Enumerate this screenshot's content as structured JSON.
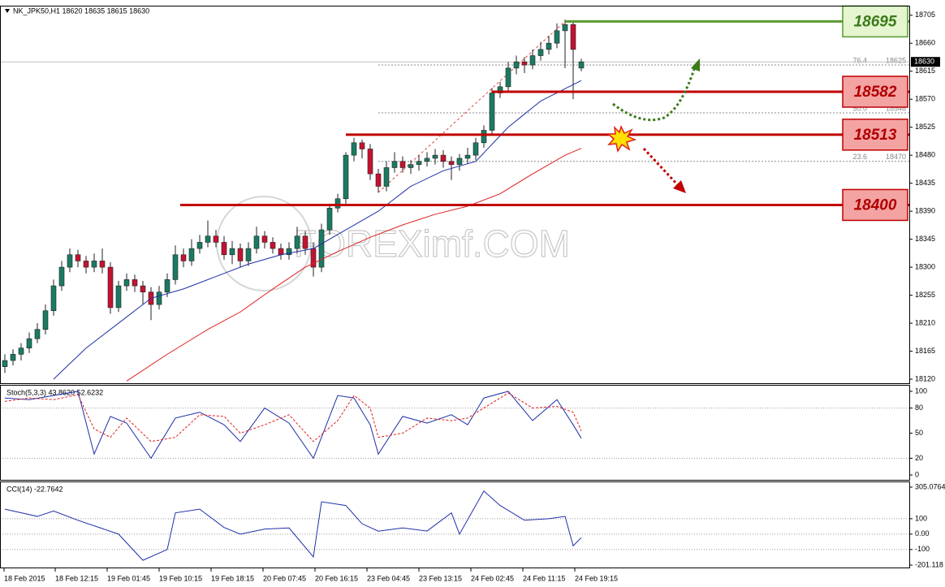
{
  "chart_data": [
    {
      "type": "candlestick",
      "title": "NK_JPK50,H1  18620 18635 18615 18630",
      "watermark": "FOREXimf.COM",
      "up_color": "#1b7a63",
      "down_color": "#c41230",
      "values": [
        [
          18140,
          18160,
          18130,
          18150
        ],
        [
          18150,
          18168,
          18142,
          18160
        ],
        [
          18160,
          18178,
          18150,
          18170
        ],
        [
          18170,
          18195,
          18162,
          18185
        ],
        [
          18185,
          18210,
          18178,
          18200
        ],
        [
          18200,
          18240,
          18192,
          18230
        ],
        [
          18230,
          18280,
          18222,
          18270
        ],
        [
          18270,
          18310,
          18262,
          18300
        ],
        [
          18300,
          18330,
          18292,
          18320
        ],
        [
          18320,
          18328,
          18300,
          18310
        ],
        [
          18310,
          18318,
          18290,
          18300
        ],
        [
          18300,
          18322,
          18292,
          18310
        ],
        [
          18310,
          18330,
          18290,
          18300
        ],
        [
          18300,
          18308,
          18225,
          18235
        ],
        [
          18235,
          18278,
          18228,
          18270
        ],
        [
          18270,
          18290,
          18262,
          18280
        ],
        [
          18280,
          18288,
          18260,
          18270
        ],
        [
          18270,
          18278,
          18240,
          18260
        ],
        [
          18260,
          18268,
          18215,
          18240
        ],
        [
          18240,
          18270,
          18232,
          18260
        ],
        [
          18260,
          18290,
          18252,
          18280
        ],
        [
          18280,
          18335,
          18272,
          18320
        ],
        [
          18320,
          18330,
          18300,
          18310
        ],
        [
          18310,
          18345,
          18302,
          18330
        ],
        [
          18330,
          18352,
          18322,
          18340
        ],
        [
          18340,
          18375,
          18332,
          18350
        ],
        [
          18350,
          18360,
          18332,
          18340
        ],
        [
          18340,
          18350,
          18312,
          18320
        ],
        [
          18320,
          18342,
          18305,
          18330
        ],
        [
          18330,
          18338,
          18300,
          18310
        ],
        [
          18310,
          18340,
          18302,
          18330
        ],
        [
          18330,
          18365,
          18322,
          18350
        ],
        [
          18350,
          18358,
          18330,
          18340
        ],
        [
          18340,
          18348,
          18322,
          18330
        ],
        [
          18330,
          18338,
          18312,
          18320
        ],
        [
          18320,
          18340,
          18312,
          18330
        ],
        [
          18330,
          18365,
          18322,
          18350
        ],
        [
          18350,
          18358,
          18320,
          18330
        ],
        [
          18330,
          18340,
          18285,
          18300
        ],
        [
          18300,
          18370,
          18292,
          18360
        ],
        [
          18360,
          18402,
          18352,
          18395
        ],
        [
          18395,
          18418,
          18388,
          18410
        ],
        [
          18410,
          18485,
          18402,
          18480
        ],
        [
          18480,
          18508,
          18470,
          18500
        ],
        [
          18500,
          18505,
          18475,
          18490
        ],
        [
          18490,
          18498,
          18440,
          18450
        ],
        [
          18450,
          18458,
          18420,
          18430
        ],
        [
          18430,
          18470,
          18422,
          18460
        ],
        [
          18460,
          18485,
          18452,
          18470
        ],
        [
          18470,
          18478,
          18452,
          18460
        ],
        [
          18460,
          18472,
          18450,
          18465
        ],
        [
          18465,
          18480,
          18455,
          18470
        ],
        [
          18470,
          18485,
          18462,
          18475
        ],
        [
          18475,
          18490,
          18465,
          18480
        ],
        [
          18480,
          18488,
          18460,
          18470
        ],
        [
          18470,
          18478,
          18440,
          18465
        ],
        [
          18465,
          18482,
          18455,
          18475
        ],
        [
          18475,
          18492,
          18466,
          18480
        ],
        [
          18480,
          18508,
          18472,
          18500
        ],
        [
          18500,
          18528,
          18492,
          18520
        ],
        [
          18520,
          18588,
          18512,
          18580
        ],
        [
          18580,
          18598,
          18572,
          18590
        ],
        [
          18590,
          18630,
          18582,
          18620
        ],
        [
          18620,
          18640,
          18610,
          18630
        ],
        [
          18630,
          18638,
          18612,
          18625
        ],
        [
          18625,
          18650,
          18618,
          18640
        ],
        [
          18640,
          18662,
          18632,
          18650
        ],
        [
          18650,
          18672,
          18642,
          18660
        ],
        [
          18660,
          18692,
          18652,
          18680
        ],
        [
          18680,
          18698,
          18620,
          18690
        ],
        [
          18690,
          18694,
          18570,
          18650
        ],
        [
          18620,
          18635,
          18615,
          18630
        ]
      ],
      "series": [
        {
          "color": "#1e2fa8",
          "x": [
            6,
            10,
            14,
            18,
            22,
            26,
            30,
            34,
            38,
            42,
            46,
            50,
            54,
            58,
            62,
            66,
            71
          ],
          "values": [
            18120,
            18170,
            18210,
            18250,
            18265,
            18285,
            18305,
            18320,
            18330,
            18360,
            18390,
            18430,
            18455,
            18470,
            18525,
            18567,
            18600
          ]
        },
        {
          "color": "#e02020",
          "x": [
            15,
            20,
            25,
            29,
            33,
            37,
            41,
            45,
            49,
            53,
            57,
            61,
            65,
            69,
            71
          ],
          "values": [
            18117,
            18160,
            18200,
            18228,
            18265,
            18300,
            18325,
            18348,
            18368,
            18385,
            18398,
            18418,
            18450,
            18480,
            18491
          ]
        }
      ],
      "xlim": [
        -0.6,
        111.4
      ],
      "xticks": [
        {
          "value": -0.1,
          "label": "18 Feb 2015"
        },
        {
          "value": 6.2,
          "label": "18 Feb 12:15"
        },
        {
          "value": 12.6,
          "label": "19 Feb 01:45"
        },
        {
          "value": 19,
          "label": "19 Feb 10:15"
        },
        {
          "value": 25.4,
          "label": "19 Feb 18:15"
        },
        {
          "value": 31.8,
          "label": "20 Feb 07:45"
        },
        {
          "value": 38.2,
          "label": "20 Feb 16:15"
        },
        {
          "value": 44.6,
          "label": "23 Feb 04:45"
        },
        {
          "value": 51,
          "label": "23 Feb 13:15"
        },
        {
          "value": 57.4,
          "label": "24 Feb 02:45"
        },
        {
          "value": 63.8,
          "label": "24 Feb 11:15"
        },
        {
          "value": 70.2,
          "label": "24 Feb 19:15"
        }
      ],
      "ylim": [
        18113.5,
        18719
      ],
      "yticks": [
        18705,
        18660,
        18615,
        18570,
        18525,
        18480,
        18435,
        18390,
        18345,
        18300,
        18255,
        18210,
        18165,
        18120
      ],
      "current": 18630,
      "levels": [
        {
          "value": 18695,
          "from_x": 69,
          "color": "#5a9a2e",
          "fill": "#e4f5cf",
          "text_color": "#3d7a1a"
        },
        {
          "value": 18582,
          "from_x": 60,
          "color": "#c00000",
          "fill": "#f4a3a3",
          "text_color": "#b00000"
        },
        {
          "value": 18513,
          "from_x": 42,
          "color": "#c00000",
          "fill": "#f4a3a3",
          "text_color": "#b00000"
        },
        {
          "value": 18400,
          "from_x": 21.6,
          "color": "#c00000",
          "fill": "#f4a3a3",
          "text_color": "#b00000"
        }
      ],
      "fib": {
        "x": [
          46,
          69
        ],
        "values": [
          18420,
          18695
        ],
        "color": "#e0443a",
        "levels": [
          {
            "label": "76.4",
            "value": 18625
          },
          {
            "label": "50.0",
            "value": 18548
          },
          {
            "label": "23.6",
            "value": 18470
          }
        ]
      }
    },
    {
      "type": "line",
      "title": "Stoch(5,3,3) 43.8620 52.6232",
      "series": [
        {
          "color": "#1e2fa8",
          "style": "solid",
          "x": [
            0,
            3,
            6,
            9,
            11,
            13,
            15,
            18,
            21,
            24,
            27,
            29,
            32,
            35,
            38,
            41,
            43,
            45,
            46,
            49,
            52,
            55,
            57,
            59,
            62,
            65,
            68,
            70,
            71
          ],
          "values": [
            92,
            90,
            95,
            100,
            25,
            70,
            62,
            20,
            68,
            75,
            60,
            40,
            80,
            62,
            20,
            95,
            92,
            60,
            25,
            70,
            62,
            72,
            60,
            92,
            100,
            65,
            90,
            60,
            43.862
          ]
        },
        {
          "color": "#e02020",
          "style": "dashed",
          "x": [
            0,
            3,
            6,
            9,
            11,
            13,
            15,
            18,
            21,
            24,
            27,
            29,
            32,
            35,
            38,
            41,
            43,
            45,
            46,
            49,
            52,
            55,
            57,
            59,
            62,
            65,
            68,
            70,
            71
          ],
          "values": [
            88,
            92,
            90,
            96,
            55,
            45,
            68,
            40,
            45,
            72,
            70,
            50,
            60,
            72,
            40,
            65,
            95,
            80,
            45,
            50,
            68,
            65,
            68,
            80,
            98,
            80,
            82,
            75,
            52.6232
          ]
        }
      ],
      "ylim": [
        -4.85,
        105.8
      ],
      "yticks": [
        100,
        80,
        50,
        20,
        0
      ],
      "levels": [
        80,
        20
      ]
    },
    {
      "type": "line",
      "title": "CCI(14) -22.7642",
      "series": [
        {
          "color": "#1e2fa8",
          "style": "solid",
          "x": [
            0,
            4,
            6,
            9,
            14,
            17,
            20,
            21,
            24,
            27,
            29,
            32,
            35,
            38,
            39,
            42,
            44,
            46,
            49,
            52,
            55,
            56,
            59,
            61,
            64,
            67,
            69,
            70,
            71
          ],
          "values": [
            162,
            115,
            150,
            90,
            0,
            -170,
            -100,
            138,
            162,
            43,
            0,
            33,
            40,
            -148,
            210,
            186,
            67,
            19,
            40,
            20,
            138,
            0,
            280,
            186,
            90,
            100,
            115,
            -76,
            -22.7642
          ]
        }
      ],
      "ylim": [
        -201.118,
        305.0764
      ],
      "yticks": [
        305.0764,
        100,
        {
          "value": 0,
          "label": "0.00"
        },
        -100,
        -201.118
      ],
      "levels": [
        100,
        0,
        -100
      ]
    }
  ]
}
